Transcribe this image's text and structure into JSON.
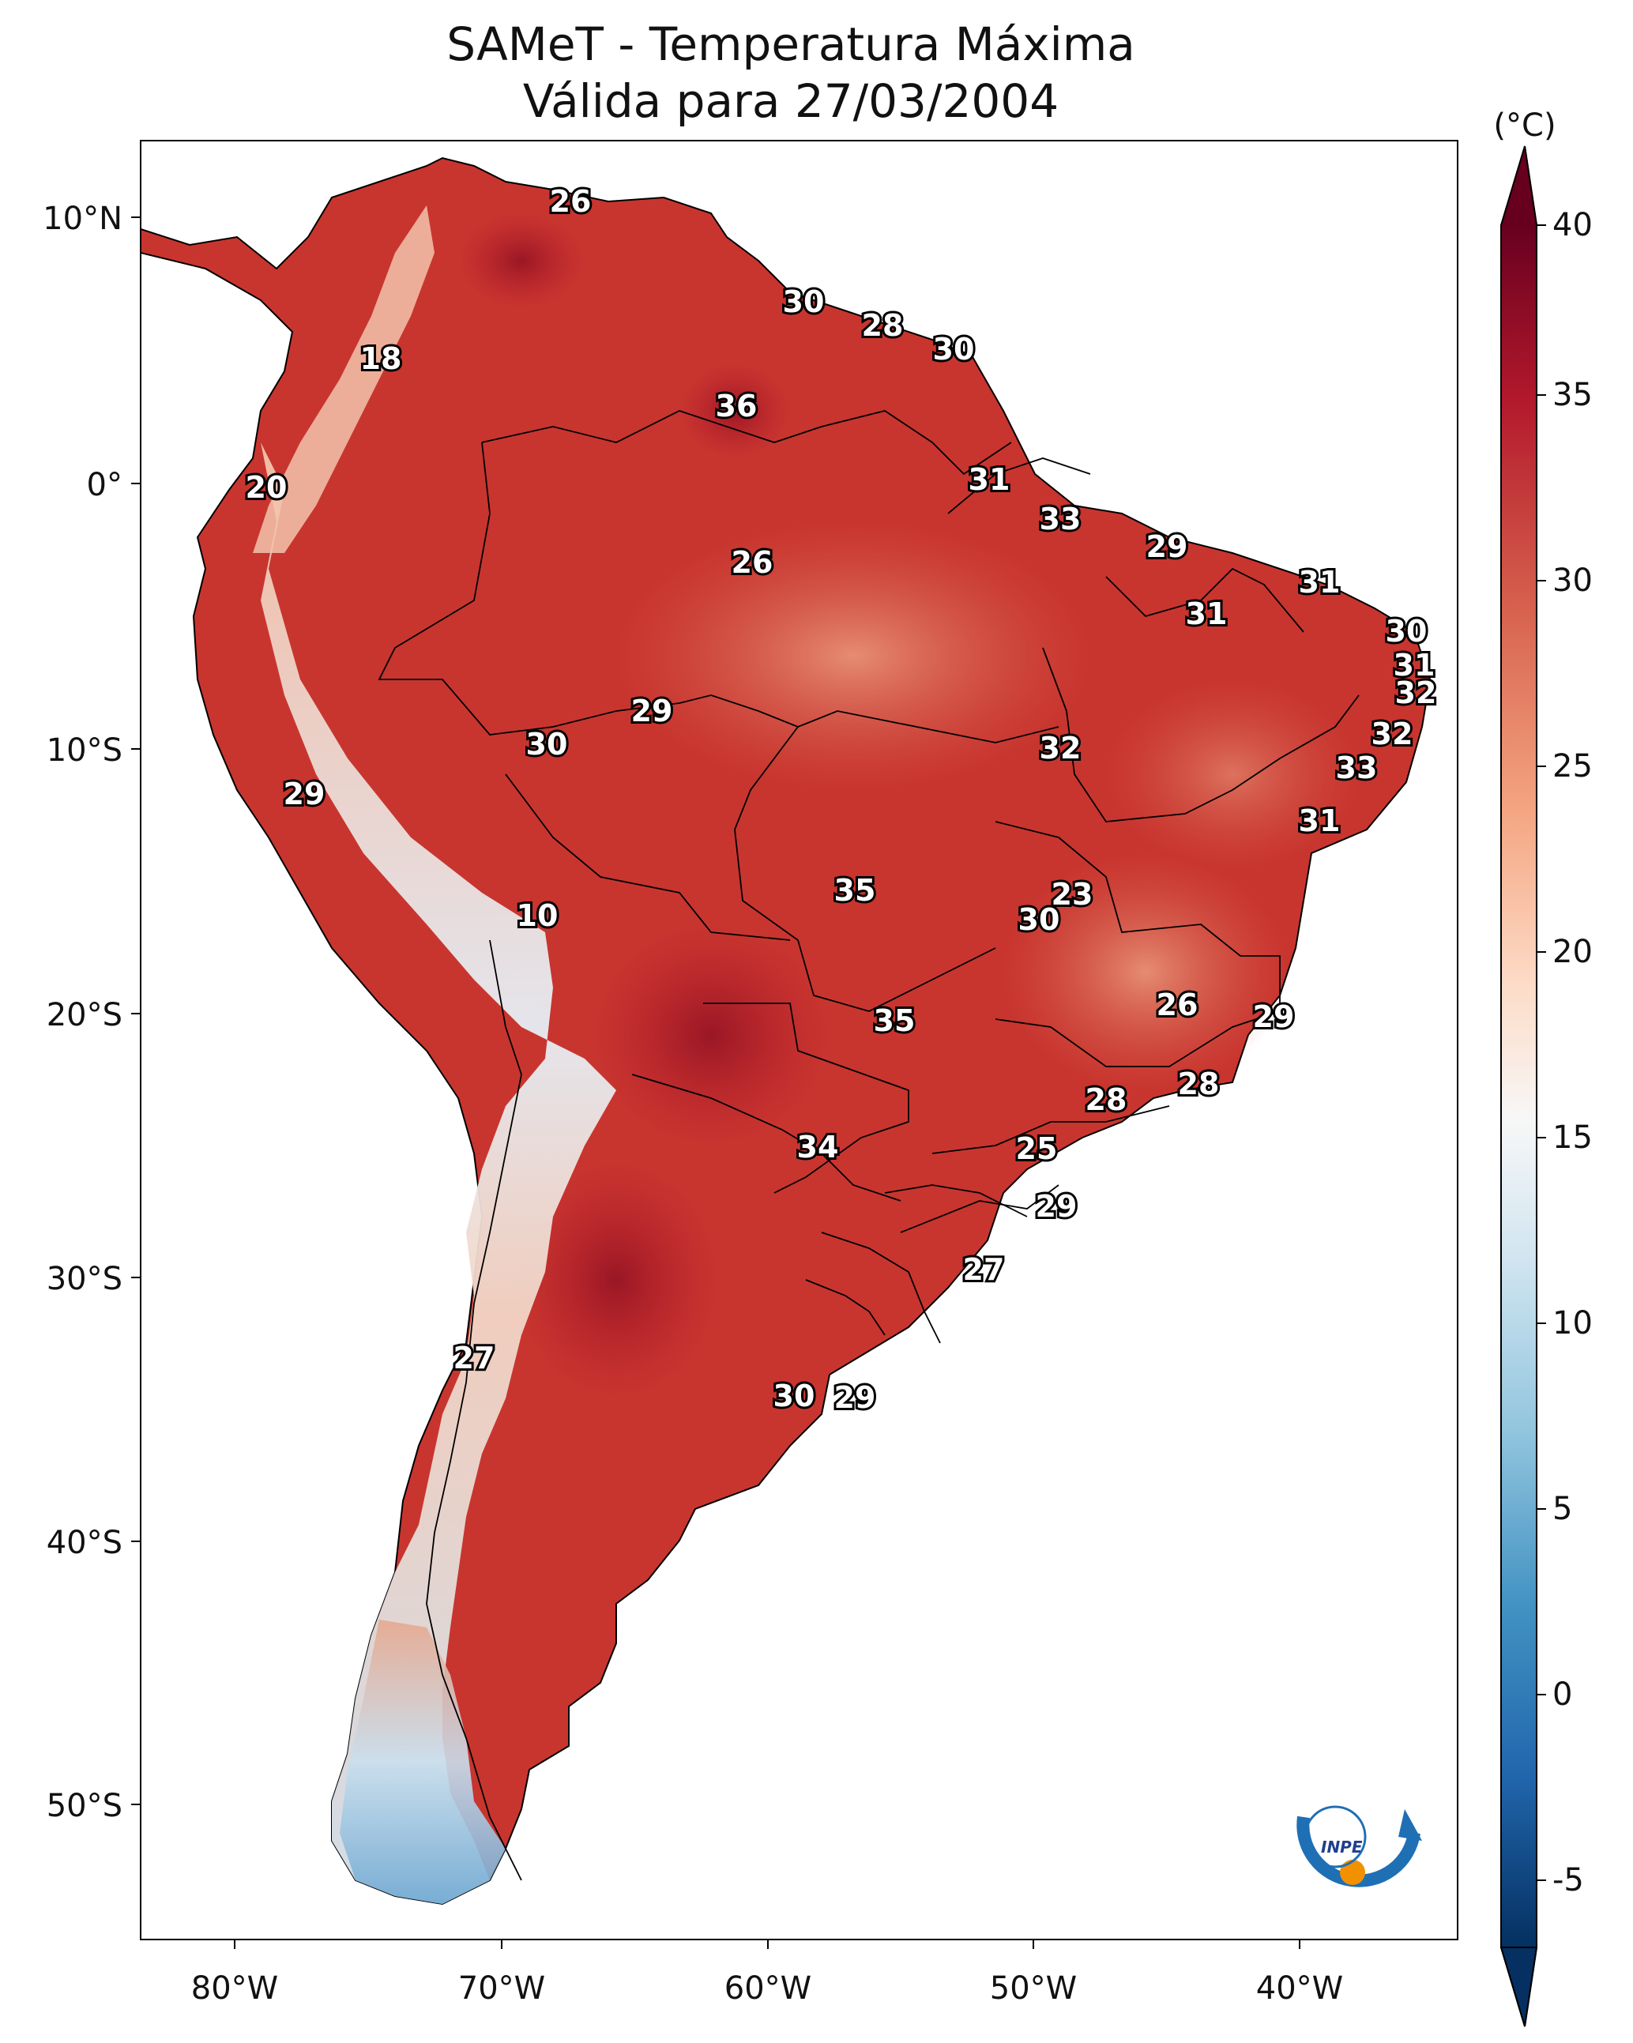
{
  "title": {
    "line1": "SAMeT - Temperatura Máxima",
    "line2": "Válida para 27/03/2004"
  },
  "axes": {
    "lon_ticks": [
      "80°W",
      "70°W",
      "60°W",
      "50°W",
      "40°W"
    ],
    "lat_ticks": [
      "10°N",
      "0°",
      "10°S",
      "20°S",
      "30°S",
      "40°S",
      "50°S"
    ]
  },
  "colorbar": {
    "unit": "(°C)",
    "ticks": [
      "40",
      "35",
      "30",
      "25",
      "20",
      "15",
      "10",
      "5",
      "0",
      "-5"
    ],
    "colors": [
      "#67001f",
      "#b2182b",
      "#d6604d",
      "#f4a582",
      "#fddbc7",
      "#f7f7f7",
      "#d1e5f0",
      "#92c5de",
      "#4393c3",
      "#2166ac",
      "#053061"
    ]
  },
  "stations": [
    {
      "value": "26"
    },
    {
      "value": "30"
    },
    {
      "value": "28"
    },
    {
      "value": "30"
    },
    {
      "value": "18"
    },
    {
      "value": "36"
    },
    {
      "value": "20"
    },
    {
      "value": "31"
    },
    {
      "value": "33"
    },
    {
      "value": "29"
    },
    {
      "value": "26"
    },
    {
      "value": "31"
    },
    {
      "value": "31"
    },
    {
      "value": "30"
    },
    {
      "value": "31"
    },
    {
      "value": "32"
    },
    {
      "value": "29"
    },
    {
      "value": "30"
    },
    {
      "value": "32"
    },
    {
      "value": "32"
    },
    {
      "value": "33"
    },
    {
      "value": "29"
    },
    {
      "value": "31"
    },
    {
      "value": "10"
    },
    {
      "value": "35"
    },
    {
      "value": "23"
    },
    {
      "value": "30"
    },
    {
      "value": "26"
    },
    {
      "value": "29"
    },
    {
      "value": "35"
    },
    {
      "value": "28"
    },
    {
      "value": "28"
    },
    {
      "value": "34"
    },
    {
      "value": "25"
    },
    {
      "value": "29"
    },
    {
      "value": "27"
    },
    {
      "value": "27"
    },
    {
      "value": "30"
    },
    {
      "value": "29"
    }
  ],
  "logo": {
    "text": "INPE"
  }
}
